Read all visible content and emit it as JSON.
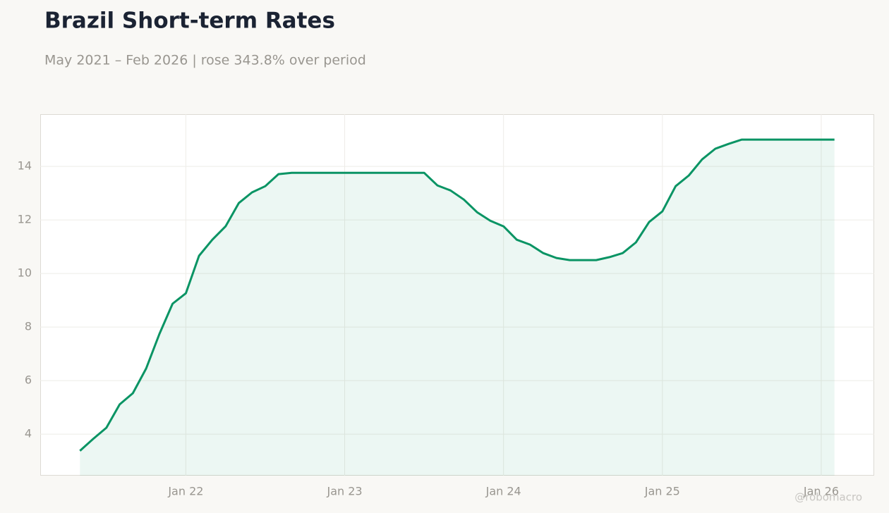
{
  "chart_data": {
    "type": "area",
    "title": "Brazil Short-term Rates",
    "subtitle": "May 2021 – Feb 2026 | rose 343.8% over period",
    "watermark": "@robomacro",
    "x": [
      "2021-05",
      "2021-06",
      "2021-07",
      "2021-08",
      "2021-09",
      "2021-10",
      "2021-11",
      "2021-12",
      "2022-01",
      "2022-02",
      "2022-03",
      "2022-04",
      "2022-05",
      "2022-06",
      "2022-07",
      "2022-08",
      "2022-09",
      "2022-10",
      "2022-11",
      "2022-12",
      "2023-01",
      "2023-02",
      "2023-03",
      "2023-04",
      "2023-05",
      "2023-06",
      "2023-07",
      "2023-08",
      "2023-09",
      "2023-10",
      "2023-11",
      "2023-12",
      "2024-01",
      "2024-02",
      "2024-03",
      "2024-04",
      "2024-05",
      "2024-06",
      "2024-07",
      "2024-08",
      "2024-09",
      "2024-10",
      "2024-11",
      "2024-12",
      "2025-01",
      "2025-02",
      "2025-03",
      "2025-04",
      "2025-05",
      "2025-06",
      "2025-07",
      "2025-08",
      "2025-09",
      "2025-10",
      "2025-11",
      "2025-12",
      "2026-01",
      "2026-02"
    ],
    "series": [
      {
        "name": "Brazil Short-term Rates",
        "color": "#0a9464",
        "values": [
          3.38,
          3.82,
          4.24,
          5.11,
          5.53,
          6.45,
          7.74,
          8.87,
          9.26,
          10.66,
          11.26,
          11.76,
          12.63,
          13.03,
          13.26,
          13.71,
          13.76,
          13.76,
          13.76,
          13.76,
          13.76,
          13.76,
          13.76,
          13.76,
          13.76,
          13.76,
          13.76,
          13.29,
          13.1,
          12.76,
          12.29,
          11.97,
          11.76,
          11.26,
          11.08,
          10.76,
          10.58,
          10.5,
          10.5,
          10.5,
          10.61,
          10.76,
          11.16,
          11.92,
          12.32,
          13.26,
          13.66,
          14.26,
          14.66,
          14.84,
          15.0,
          15.0,
          15.0,
          15.0,
          15.0,
          15.0,
          15.0,
          15.0
        ]
      }
    ],
    "xlim": [
      "2021-02",
      "2026-05"
    ],
    "xticks": [
      {
        "value": "2022-01",
        "label": "Jan 22"
      },
      {
        "value": "2023-01",
        "label": "Jan 23"
      },
      {
        "value": "2024-01",
        "label": "Jan 24"
      },
      {
        "value": "2025-01",
        "label": "Jan 25"
      },
      {
        "value": "2026-01",
        "label": "Jan 26"
      }
    ],
    "ylim": [
      2.45,
      15.95
    ],
    "yticks": [
      4,
      6,
      8,
      10,
      12,
      14
    ],
    "grid": true
  }
}
